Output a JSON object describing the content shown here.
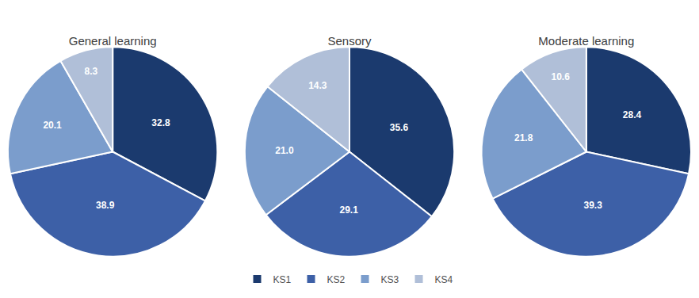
{
  "chart_data": [
    {
      "type": "pie",
      "title": "General learning",
      "categories": [
        "KS1",
        "KS2",
        "KS3",
        "KS4"
      ],
      "values": [
        32.8,
        38.9,
        20.1,
        8.3
      ],
      "value_labels": [
        "32.8",
        "38.9",
        "20.1",
        "8.3"
      ],
      "colors": [
        "#1b3a6e",
        "#3d60a7",
        "#7b9dcc",
        "#b0bfd8"
      ],
      "data_labels": true,
      "legend": "bottom"
    },
    {
      "type": "pie",
      "title": "Sensory",
      "categories": [
        "KS1",
        "KS2",
        "KS3",
        "KS4"
      ],
      "values": [
        35.6,
        29.1,
        21.0,
        14.3
      ],
      "value_labels": [
        "35.6",
        "29.1",
        "21.0",
        "14.3"
      ],
      "colors": [
        "#1b3a6e",
        "#3d60a7",
        "#7b9dcc",
        "#b0bfd8"
      ],
      "data_labels": true,
      "legend": "bottom"
    },
    {
      "type": "pie",
      "title": "Moderate learning",
      "categories": [
        "KS1",
        "KS2",
        "KS3",
        "KS4"
      ],
      "values": [
        28.4,
        39.3,
        21.8,
        10.6
      ],
      "value_labels": [
        "28.4",
        "39.3",
        "21.8",
        "10.6"
      ],
      "colors": [
        "#1b3a6e",
        "#3d60a7",
        "#7b9dcc",
        "#b0bfd8"
      ],
      "data_labels": true,
      "legend": "bottom"
    }
  ]
}
